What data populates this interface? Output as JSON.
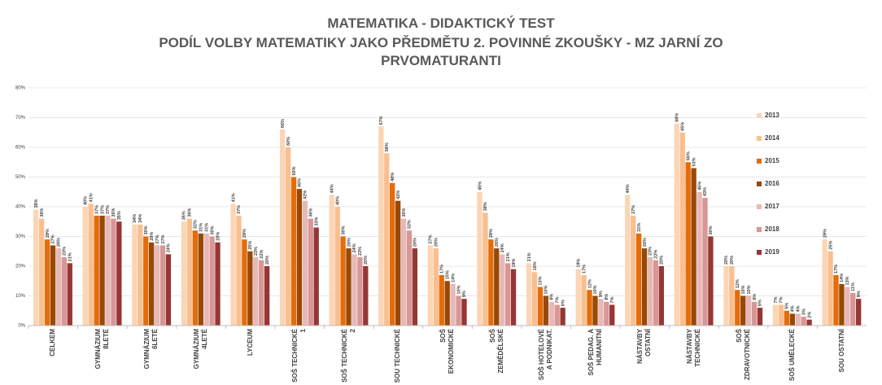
{
  "chart_data": {
    "type": "bar",
    "title": "MATEMATIKA - DIDAKTICKÝ TEST",
    "subtitle": "PODÍL VOLBY MATEMATIKY JAKO PŘEDMĚTU 2. POVINNÉ ZKOUŠKY - MZ JARNÍ ZO PRVOMATURANTI",
    "categories": [
      "CELKEM",
      "GYMNÁZIUM 8LETÉ",
      "GYMNÁZIUM 6LETÉ",
      "GYMNÁZIUM 4LETÉ",
      "LYCEUM",
      "SOŠ TECHNICKÉ 1",
      "SOŠ TECHNICKÉ 2",
      "SOU TECHNICKÉ",
      "SOŠ EKONOMICKÉ",
      "SOŠ ZEMĚDĚLSKÉ",
      "SOŠ HOTELOVÉ A PODNIKAT.",
      "SOŠ PEDAG. A HUMANITNÍ",
      "NÁSTAVBY OSTATNÍ",
      "NÁSTAVBY TECHNICKÉ",
      "SOŠ ZDRAVOTNICKÉ",
      "SOŠ UMĚLECKÉ",
      "SOU OSTATNÍ"
    ],
    "series": [
      {
        "name": "2013",
        "color": "#fcd5b4",
        "values": [
          39,
          40,
          34,
          35,
          41,
          66,
          44,
          67,
          27,
          45,
          21,
          19,
          44,
          68,
          20,
          7,
          29
        ],
        "value_labels": [
          "39%",
          "40%",
          "34%",
          "35%",
          "41%",
          "66%",
          "44%",
          "67%",
          "27%",
          "45%",
          "21%",
          "19%",
          "44%",
          "68%",
          "20%",
          "7%",
          "29%"
        ]
      },
      {
        "name": "2014",
        "color": "#fabf8f",
        "values": [
          36,
          41,
          34,
          36,
          37,
          60,
          40,
          58,
          26,
          38,
          18,
          17,
          37,
          65,
          20,
          7,
          25
        ],
        "value_labels": [
          "36%",
          "41%",
          "34%",
          "36%",
          "37%",
          "60%",
          "40%",
          "58%",
          "26%",
          "38%",
          "18%",
          "17%",
          "37%",
          "65%",
          "20%",
          "7%",
          "25%"
        ]
      },
      {
        "name": "2015",
        "color": "#e46c0a",
        "values": [
          29,
          37,
          30,
          32,
          29,
          50,
          30,
          48,
          17,
          29,
          13,
          12,
          31,
          55,
          12,
          5,
          17
        ],
        "value_labels": [
          "29%",
          "37%",
          "30%",
          "32%",
          "29%",
          "50%",
          "30%",
          "48%",
          "17%",
          "29%",
          "13%",
          "12%",
          "31%",
          "55%",
          "12%",
          "5%",
          "17%"
        ]
      },
      {
        "name": "2016",
        "color": "#984807",
        "values": [
          27,
          37,
          28,
          31,
          25,
          46,
          26,
          42,
          15,
          26,
          10,
          10,
          26,
          53,
          10,
          4,
          14
        ],
        "value_labels": [
          "27%",
          "37%",
          "28%",
          "31%",
          "25%",
          "46%",
          "26%",
          "42%",
          "15%",
          "26%",
          "10%",
          "10%",
          "26%",
          "53%",
          "10%",
          "4%",
          "14%"
        ]
      },
      {
        "name": "2017",
        "color": "#e6b9b8",
        "values": [
          26,
          37,
          27,
          31,
          23,
          42,
          24,
          36,
          14,
          24,
          8,
          9,
          23,
          45,
          10,
          4,
          13
        ],
        "value_labels": [
          "26%",
          "37%",
          "27%",
          "31%",
          "23%",
          "42%",
          "24%",
          "36%",
          "14%",
          "24%",
          "8%",
          "9%",
          "23%",
          "45%",
          "10%",
          "4%",
          "13%"
        ]
      },
      {
        "name": "2018",
        "color": "#d99694",
        "values": [
          23,
          36,
          27,
          30,
          22,
          36,
          23,
          32,
          10,
          21,
          7,
          8,
          22,
          43,
          8,
          3,
          11
        ],
        "value_labels": [
          "23%",
          "36%",
          "27%",
          "30%",
          "22%",
          "36%",
          "23%",
          "32%",
          "10%",
          "21%",
          "7%",
          "8%",
          "22%",
          "43%",
          "8%",
          "3%",
          "11%"
        ]
      },
      {
        "name": "2019",
        "color": "#953735",
        "values": [
          21,
          35,
          24,
          28,
          20,
          33,
          20,
          26,
          9,
          19,
          6,
          7,
          20,
          30,
          6,
          2,
          9
        ],
        "value_labels": [
          "21%",
          "35%",
          "24%",
          "28%",
          "20%",
          "33%",
          "20%",
          "26%",
          "9%",
          "19%",
          "6%",
          "7%",
          "20%",
          "30%",
          "6%",
          "2%",
          "9%"
        ]
      }
    ],
    "ylim": [
      0,
      80
    ],
    "yticks": [
      {
        "value": 0,
        "label": "0%"
      },
      {
        "value": 10,
        "label": "10%"
      },
      {
        "value": 20,
        "label": "20%"
      },
      {
        "value": 30,
        "label": "30%"
      },
      {
        "value": 40,
        "label": "40%"
      },
      {
        "value": 50,
        "label": "50%"
      },
      {
        "value": 60,
        "label": "60%"
      },
      {
        "value": 70,
        "label": "70%"
      },
      {
        "value": 80,
        "label": "80%"
      }
    ],
    "grid": true,
    "legend": "right"
  }
}
